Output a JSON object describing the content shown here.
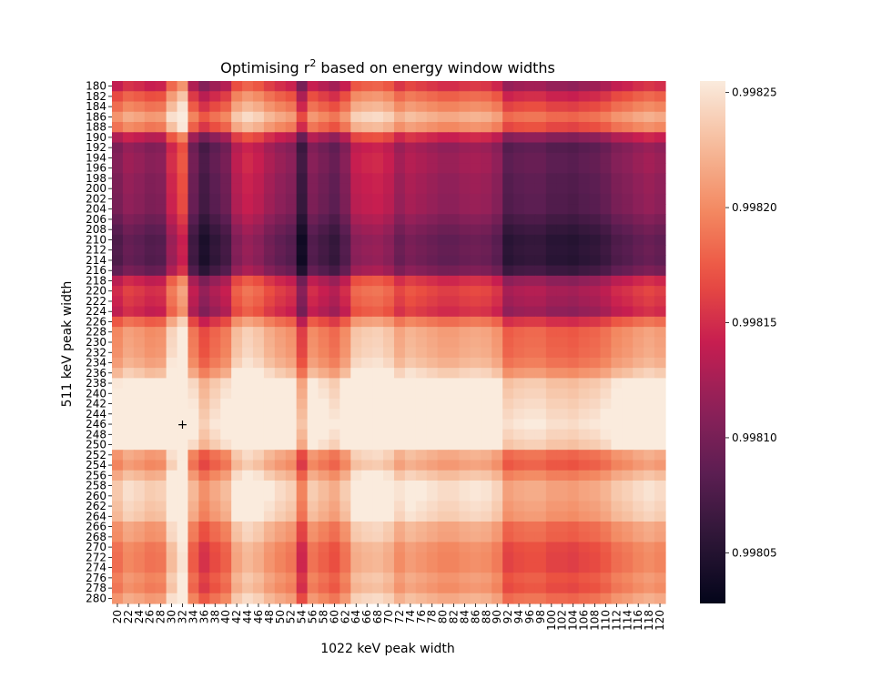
{
  "chart_data": {
    "type": "heatmap",
    "title": "Optimising r",
    "title_superscript": "2",
    "title_suffix": " based on energy window widths",
    "xlabel": "1022 keV peak width",
    "ylabel": "511 keV peak width",
    "x_values": [
      20,
      22,
      24,
      26,
      28,
      30,
      32,
      34,
      36,
      38,
      40,
      42,
      44,
      46,
      48,
      50,
      52,
      54,
      56,
      58,
      60,
      62,
      64,
      66,
      68,
      70,
      72,
      74,
      76,
      78,
      80,
      82,
      84,
      86,
      88,
      90,
      92,
      94,
      96,
      98,
      100,
      102,
      104,
      106,
      108,
      110,
      112,
      114,
      116,
      118,
      120
    ],
    "y_values": [
      180,
      182,
      184,
      186,
      188,
      190,
      192,
      194,
      196,
      198,
      200,
      202,
      204,
      206,
      208,
      210,
      212,
      214,
      216,
      218,
      220,
      222,
      224,
      226,
      228,
      230,
      232,
      234,
      236,
      238,
      240,
      242,
      244,
      246,
      248,
      250,
      252,
      254,
      256,
      258,
      260,
      262,
      264,
      266,
      268,
      270,
      272,
      274,
      276,
      278,
      280
    ],
    "colorbar": {
      "min": 0.998028,
      "max": 0.998255,
      "ticks": [
        "0.99805",
        "0.99810",
        "0.99815",
        "0.99820",
        "0.99825"
      ],
      "tick_values": [
        0.99805,
        0.9981,
        0.99815,
        0.9982,
        0.99825
      ]
    },
    "colormap": "rocket",
    "optimum_marker": {
      "x": 32,
      "y": 246,
      "symbol": "+"
    },
    "column_offsets": [
      -0.5,
      0.1,
      -0.1,
      -0.4,
      -0.3,
      1.4,
      2.4,
      -0.9,
      -1.9,
      -1.3,
      -0.8,
      0.8,
      1.3,
      1,
      0.4,
      0,
      -0.3,
      -2.2,
      -0.4,
      -0.8,
      -1.2,
      -0.4,
      1,
      1.2,
      1.3,
      1,
      0.2,
      0.6,
      0.4,
      0.2,
      0,
      0,
      0.2,
      0.3,
      0.2,
      -0.2,
      -1.5,
      -1.3,
      -1.2,
      -1.2,
      -1.5,
      -1.5,
      -1.6,
      -1.4,
      -1.3,
      -1,
      -0.5,
      -0.3,
      0,
      0.2,
      0
    ],
    "row_offsets": [
      -0.6,
      0.6,
      1.4,
      2.3,
      1.5,
      -1,
      -2.2,
      -2,
      -2,
      -2.2,
      -2.2,
      -2.3,
      -2.3,
      -2.7,
      -3.1,
      -3.4,
      -3.3,
      -3.4,
      -2.9,
      -0.8,
      -0.2,
      -0.4,
      -0.7,
      0.9,
      2,
      2.1,
      2.2,
      2.5,
      3.2,
      4.4,
      4.6,
      4.8,
      5,
      5.2,
      4.9,
      4.5,
      2.3,
      1.9,
      2.8,
      3.6,
      3.6,
      3.4,
      3.2,
      2.2,
      2.1,
      1.5,
      1.4,
      1.4,
      1.8,
      1.6,
      2.3
    ],
    "value_scale": "colour index 0 = 0.998028, each unit = 0.0000227"
  }
}
